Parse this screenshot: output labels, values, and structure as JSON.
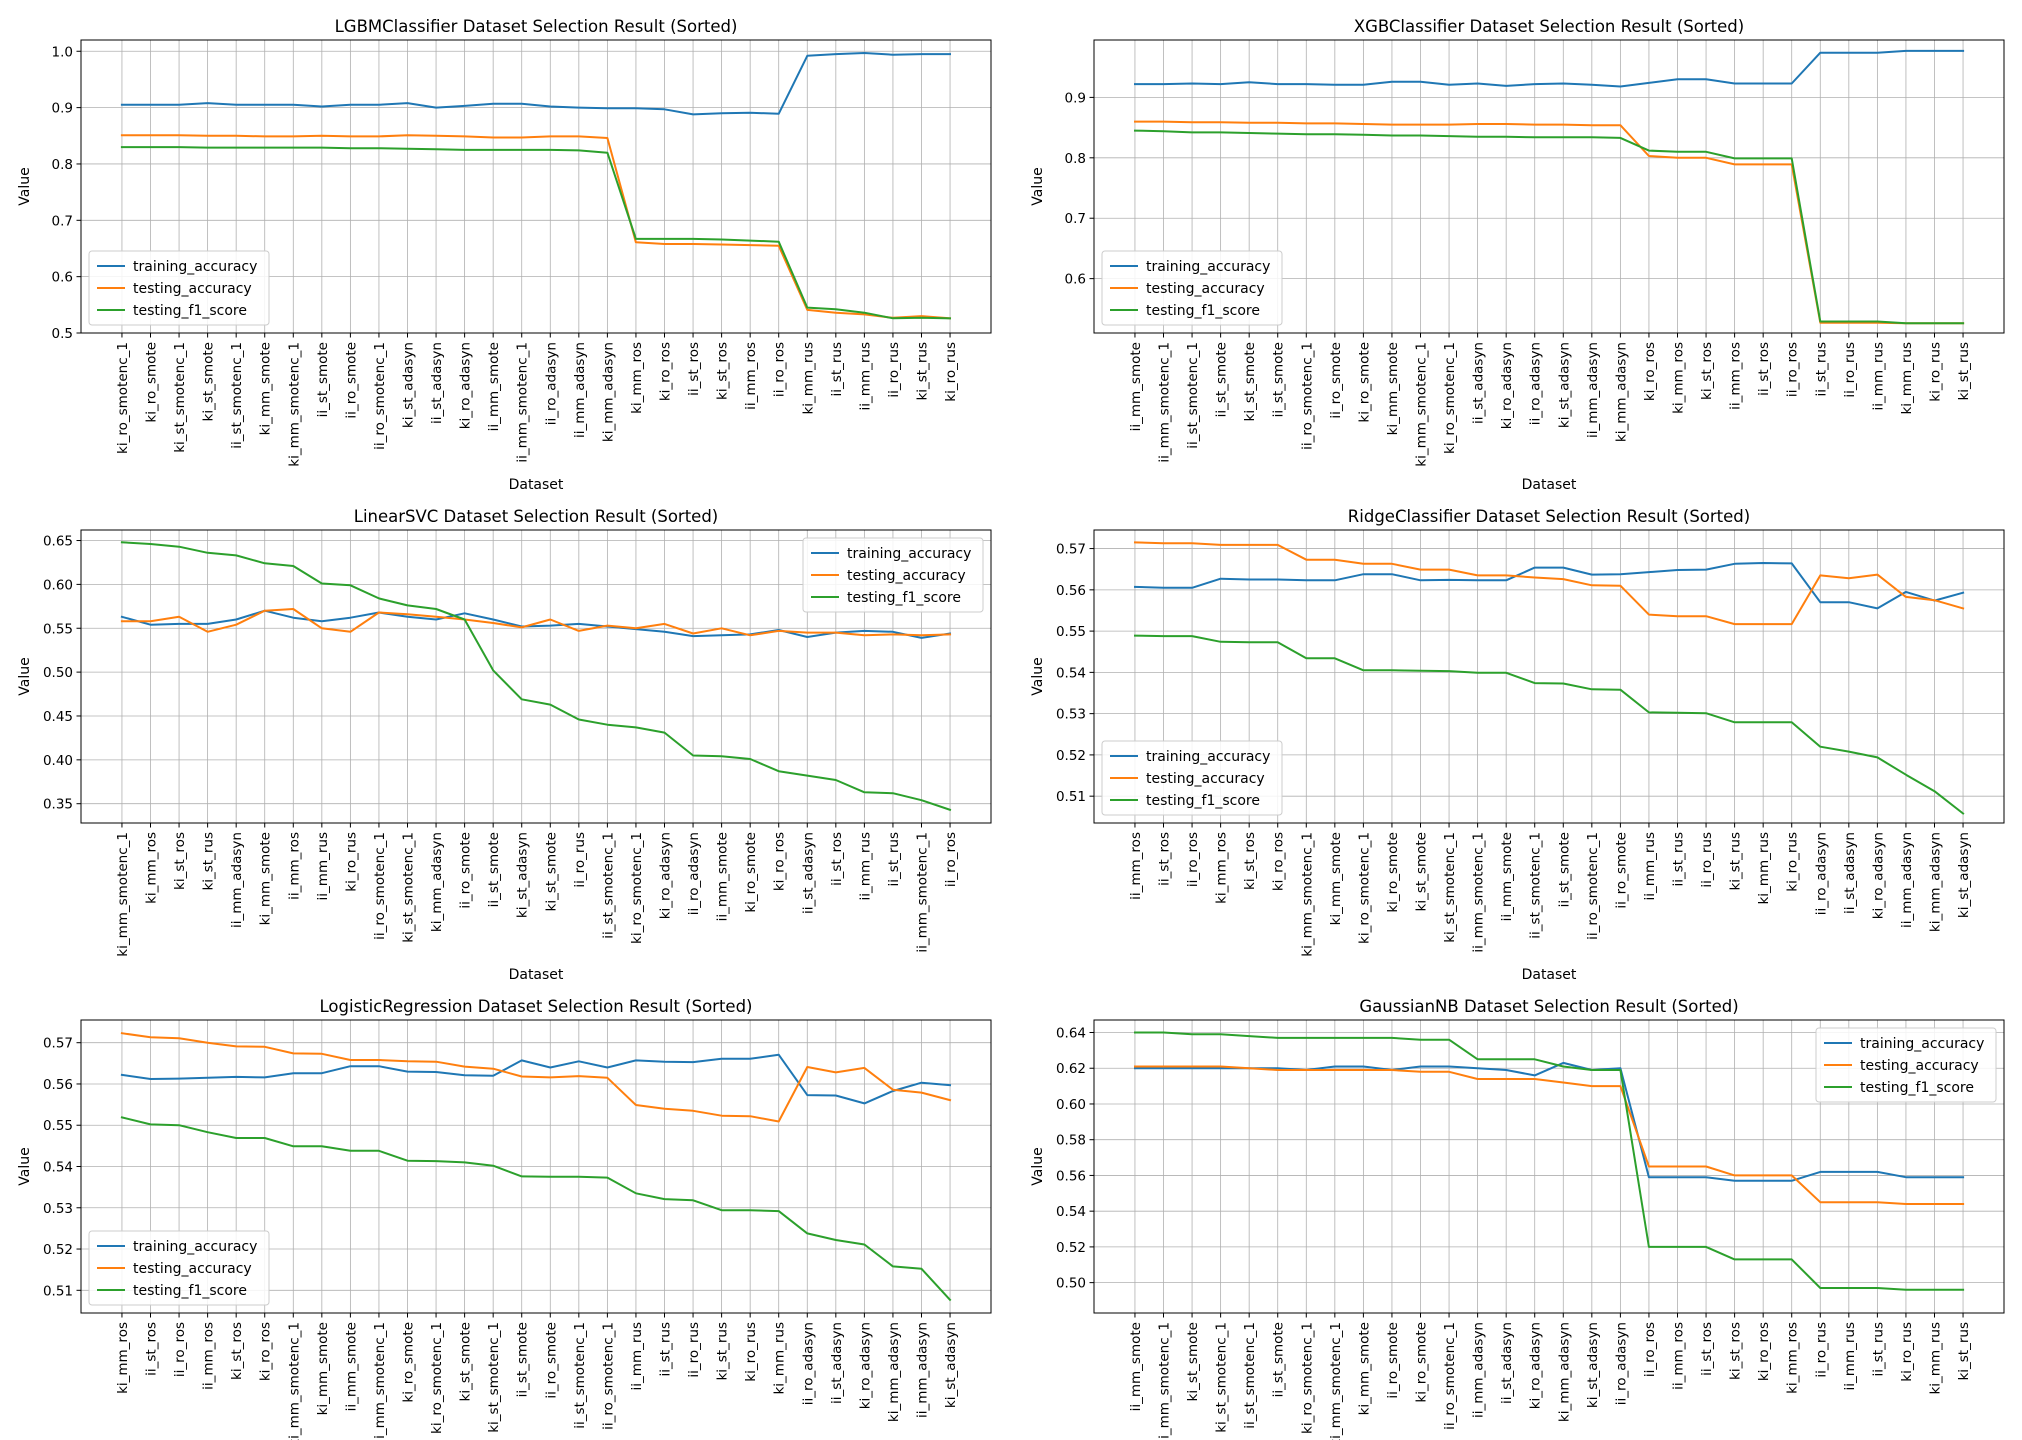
{
  "chart_data": [
    {
      "type": "line",
      "title": "LGBMClassifier Dataset Selection Result (Sorted)",
      "xlabel": "Dataset",
      "ylabel": "Value",
      "ylim": [
        0.5,
        1.02
      ],
      "yticks": [
        "0.5",
        "0.6",
        "0.7",
        "0.8",
        "0.9",
        "1.0"
      ],
      "legend_position": "lower-left",
      "grid": true,
      "categories": [
        "ki_ro_smotenc_1",
        "ki_ro_smote",
        "ki_st_smotenc_1",
        "ki_st_smote",
        "ii_st_smotenc_1",
        "ki_mm_smote",
        "ki_mm_smotenc_1",
        "ii_st_smote",
        "ii_ro_smote",
        "ii_ro_smotenc_1",
        "ki_st_adasyn",
        "ii_st_adasyn",
        "ki_ro_adasyn",
        "ii_mm_smote",
        "ii_mm_smotenc_1",
        "ii_ro_adasyn",
        "ii_mm_adasyn",
        "ki_mm_adasyn",
        "ki_mm_ros",
        "ki_ro_ros",
        "ii_st_ros",
        "ki_st_ros",
        "ii_mm_ros",
        "ii_ro_ros",
        "ki_mm_rus",
        "ii_st_rus",
        "ii_mm_rus",
        "ii_ro_rus",
        "ki_st_rus",
        "ki_ro_rus"
      ],
      "series": [
        {
          "name": "training_accuracy",
          "color": "#1f77b4",
          "values": [
            0.905,
            0.905,
            0.905,
            0.908,
            0.905,
            0.905,
            0.905,
            0.902,
            0.905,
            0.905,
            0.908,
            0.9,
            0.903,
            0.907,
            0.907,
            0.902,
            0.9,
            0.899,
            0.899,
            0.897,
            0.888,
            0.89,
            0.891,
            0.889,
            0.992,
            0.995,
            0.997,
            0.994,
            0.995,
            0.995
          ]
        },
        {
          "name": "testing_accuracy",
          "color": "#ff7f0e",
          "values": [
            0.851,
            0.851,
            0.851,
            0.85,
            0.85,
            0.849,
            0.849,
            0.85,
            0.849,
            0.849,
            0.851,
            0.85,
            0.849,
            0.847,
            0.847,
            0.849,
            0.849,
            0.846,
            0.661,
            0.658,
            0.658,
            0.657,
            0.656,
            0.655,
            0.541,
            0.536,
            0.533,
            0.527,
            0.53,
            0.526
          ]
        },
        {
          "name": "testing_f1_score",
          "color": "#2ca02c",
          "values": [
            0.83,
            0.83,
            0.83,
            0.829,
            0.829,
            0.829,
            0.829,
            0.829,
            0.828,
            0.828,
            0.827,
            0.826,
            0.825,
            0.825,
            0.825,
            0.825,
            0.824,
            0.82,
            0.667,
            0.667,
            0.667,
            0.666,
            0.664,
            0.662,
            0.545,
            0.542,
            0.536,
            0.526,
            0.527,
            0.526
          ]
        }
      ]
    },
    {
      "type": "line",
      "title": "XGBClassifier Dataset Selection Result (Sorted)",
      "xlabel": "Dataset",
      "ylabel": "Value",
      "ylim": [
        0.51,
        0.995
      ],
      "yticks": [
        "0.6",
        "0.7",
        "0.8",
        "0.9"
      ],
      "legend_position": "lower-left",
      "grid": true,
      "categories": [
        "ii_mm_smote",
        "ii_mm_smotenc_1",
        "ii_st_smotenc_1",
        "ii_st_smote",
        "ki_st_smote",
        "ii_st_smote",
        "ii_ro_smotenc_1",
        "ii_ro_smote",
        "ki_ro_smote",
        "ki_mm_smote",
        "ki_mm_smotenc_1",
        "ki_ro_smotenc_1",
        "ii_st_adasyn",
        "ki_ro_adasyn",
        "ii_ro_adasyn",
        "ki_st_adasyn",
        "ii_mm_adasyn",
        "ki_mm_adasyn",
        "ki_ro_ros",
        "ki_mm_ros",
        "ki_st_ros",
        "ii_mm_ros",
        "ii_st_ros",
        "ii_ro_ros",
        "ii_st_rus",
        "ii_ro_rus",
        "ii_mm_rus",
        "ki_mm_rus",
        "ki_ro_rus",
        "ki_st_rus"
      ],
      "series": [
        {
          "name": "training_accuracy",
          "color": "#1f77b4",
          "values": [
            0.922,
            0.922,
            0.923,
            0.922,
            0.925,
            0.922,
            0.922,
            0.921,
            0.921,
            0.926,
            0.926,
            0.921,
            0.923,
            0.919,
            0.922,
            0.923,
            0.921,
            0.918,
            0.924,
            0.93,
            0.93,
            0.923,
            0.923,
            0.923,
            0.974,
            0.974,
            0.974,
            0.977,
            0.977,
            0.977
          ]
        },
        {
          "name": "testing_accuracy",
          "color": "#ff7f0e",
          "values": [
            0.86,
            0.86,
            0.859,
            0.859,
            0.858,
            0.858,
            0.857,
            0.857,
            0.856,
            0.855,
            0.855,
            0.855,
            0.856,
            0.856,
            0.855,
            0.855,
            0.854,
            0.854,
            0.803,
            0.8,
            0.8,
            0.789,
            0.789,
            0.789,
            0.527,
            0.527,
            0.527,
            0.526,
            0.526,
            0.526
          ]
        },
        {
          "name": "testing_f1_score",
          "color": "#2ca02c",
          "values": [
            0.845,
            0.844,
            0.842,
            0.842,
            0.841,
            0.84,
            0.839,
            0.839,
            0.838,
            0.837,
            0.837,
            0.836,
            0.835,
            0.835,
            0.834,
            0.834,
            0.834,
            0.833,
            0.812,
            0.81,
            0.81,
            0.799,
            0.799,
            0.799,
            0.529,
            0.529,
            0.529,
            0.526,
            0.526,
            0.526
          ]
        }
      ]
    },
    {
      "type": "line",
      "title": "LinearSVC Dataset Selection Result (Sorted)",
      "xlabel": "Dataset",
      "ylabel": "Value",
      "ylim": [
        0.328,
        0.662
      ],
      "yticks": [
        "0.35",
        "0.40",
        "0.45",
        "0.50",
        "0.55",
        "0.60",
        "0.65"
      ],
      "legend_position": "upper-right",
      "grid": true,
      "categories": [
        "ki_mm_smotenc_1",
        "ki_mm_ros",
        "ki_st_ros",
        "ki_st_rus",
        "ii_mm_adasyn",
        "ki_mm_smote",
        "ii_mm_ros",
        "ii_mm_rus",
        "ki_ro_rus",
        "ii_ro_smotenc_1",
        "ki_st_smotenc_1",
        "ki_mm_adasyn",
        "ii_ro_smote",
        "ii_st_smote",
        "ki_st_adasyn",
        "ki_st_smote",
        "ii_ro_rus",
        "ii_st_smotenc_1",
        "ki_ro_smotenc_1",
        "ki_ro_adasyn",
        "ii_ro_adasyn",
        "ii_mm_smote",
        "ki_ro_smote",
        "ki_ro_ros",
        "ii_st_adasyn",
        "ii_st_ros",
        "ii_mm_rus",
        "ii_st_rus",
        "ii_mm_smotenc_1",
        "ii_ro_ros"
      ],
      "series": [
        {
          "name": "training_accuracy",
          "color": "#1f77b4",
          "values": [
            0.563,
            0.554,
            0.555,
            0.555,
            0.56,
            0.57,
            0.562,
            0.558,
            0.562,
            0.568,
            0.563,
            0.56,
            0.567,
            0.56,
            0.552,
            0.553,
            0.555,
            0.552,
            0.549,
            0.546,
            0.541,
            0.542,
            0.543,
            0.548,
            0.54,
            0.545,
            0.547,
            0.546,
            0.539,
            0.544
          ]
        },
        {
          "name": "testing_accuracy",
          "color": "#ff7f0e",
          "values": [
            0.558,
            0.558,
            0.563,
            0.546,
            0.554,
            0.57,
            0.572,
            0.55,
            0.546,
            0.568,
            0.566,
            0.563,
            0.56,
            0.556,
            0.551,
            0.56,
            0.547,
            0.553,
            0.55,
            0.555,
            0.544,
            0.55,
            0.542,
            0.547,
            0.545,
            0.545,
            0.542,
            0.543,
            0.542,
            0.543
          ]
        },
        {
          "name": "testing_f1_score",
          "color": "#2ca02c",
          "values": [
            0.648,
            0.646,
            0.643,
            0.636,
            0.633,
            0.624,
            0.621,
            0.601,
            0.599,
            0.584,
            0.576,
            0.572,
            0.56,
            0.502,
            0.469,
            0.463,
            0.446,
            0.44,
            0.437,
            0.431,
            0.405,
            0.404,
            0.401,
            0.387,
            0.382,
            0.377,
            0.363,
            0.362,
            0.354,
            0.343
          ]
        }
      ]
    },
    {
      "type": "line",
      "title": "RidgeClassifier Dataset Selection Result (Sorted)",
      "xlabel": "Dataset",
      "ylabel": "Value",
      "ylim": [
        0.5035,
        0.5745
      ],
      "yticks": [
        "0.51",
        "0.52",
        "0.53",
        "0.54",
        "0.55",
        "0.56",
        "0.57"
      ],
      "legend_position": "lower-left",
      "grid": true,
      "categories": [
        "ii_mm_ros",
        "ii_st_ros",
        "ii_ro_ros",
        "ki_mm_ros",
        "ki_st_ros",
        "ki_ro_ros",
        "ki_mm_smotenc_1",
        "ki_mm_smote",
        "ki_ro_smotenc_1",
        "ki_ro_smote",
        "ki_st_smote",
        "ki_st_smotenc_1",
        "ii_mm_smotenc_1",
        "ii_mm_smote",
        "ii_st_smotenc_1",
        "ii_st_smote",
        "ii_ro_smotenc_1",
        "ii_ro_smote",
        "ii_mm_rus",
        "ii_st_rus",
        "ii_ro_rus",
        "ki_st_rus",
        "ki_mm_rus",
        "ki_ro_rus",
        "ii_ro_adasyn",
        "ii_st_adasyn",
        "ki_ro_adasyn",
        "ii_mm_adasyn",
        "ki_mm_adasyn",
        "ki_st_adasyn"
      ],
      "series": [
        {
          "name": "training_accuracy",
          "color": "#1f77b4",
          "values": [
            0.5607,
            0.5605,
            0.5605,
            0.5627,
            0.5625,
            0.5625,
            0.5623,
            0.5623,
            0.5638,
            0.5638,
            0.5623,
            0.5624,
            0.5623,
            0.5623,
            0.5654,
            0.5654,
            0.5637,
            0.5638,
            0.5643,
            0.5648,
            0.5649,
            0.5663,
            0.5665,
            0.5664,
            0.557,
            0.557,
            0.5555,
            0.5595,
            0.5574,
            0.5593
          ]
        },
        {
          "name": "testing_accuracy",
          "color": "#ff7f0e",
          "values": [
            0.5715,
            0.5713,
            0.5713,
            0.5709,
            0.5709,
            0.5709,
            0.5673,
            0.5673,
            0.5663,
            0.5663,
            0.5649,
            0.5649,
            0.5635,
            0.5635,
            0.563,
            0.5626,
            0.5611,
            0.561,
            0.554,
            0.5536,
            0.5536,
            0.5517,
            0.5517,
            0.5517,
            0.5635,
            0.5628,
            0.5637,
            0.5583,
            0.5575,
            0.5555
          ]
        },
        {
          "name": "testing_f1_score",
          "color": "#2ca02c",
          "values": [
            0.5489,
            0.5488,
            0.5488,
            0.5474,
            0.5473,
            0.5473,
            0.5434,
            0.5434,
            0.5405,
            0.5405,
            0.5404,
            0.5403,
            0.5399,
            0.5399,
            0.5374,
            0.5373,
            0.5359,
            0.5358,
            0.5303,
            0.5302,
            0.5301,
            0.5279,
            0.5279,
            0.5279,
            0.522,
            0.5208,
            0.5194,
            0.5152,
            0.5112,
            0.5058
          ]
        }
      ]
    },
    {
      "type": "line",
      "title": "LogisticRegression Dataset Selection Result (Sorted)",
      "xlabel": "Dataset",
      "ylabel": "Value",
      "ylim": [
        0.5045,
        0.5755
      ],
      "yticks": [
        "0.51",
        "0.52",
        "0.53",
        "0.54",
        "0.55",
        "0.56",
        "0.57"
      ],
      "legend_position": "lower-left",
      "grid": true,
      "categories": [
        "ki_mm_ros",
        "ii_st_ros",
        "ii_ro_ros",
        "ii_mm_ros",
        "ki_st_ros",
        "ki_ro_ros",
        "ki_mm_smotenc_1",
        "ki_mm_smote",
        "ii_mm_smote",
        "ii_mm_smotenc_1",
        "ki_ro_smote",
        "ki_ro_smotenc_1",
        "ki_st_smote",
        "ki_st_smotenc_1",
        "ii_st_smote",
        "ii_ro_smote",
        "ii_st_smotenc_1",
        "ii_ro_smotenc_1",
        "ii_mm_rus",
        "ii_st_rus",
        "ii_ro_rus",
        "ki_st_rus",
        "ki_ro_rus",
        "ki_mm_rus",
        "ii_ro_adasyn",
        "ii_st_adasyn",
        "ki_ro_adasyn",
        "ki_mm_adasyn",
        "ii_mm_adasyn",
        "ki_st_adasyn"
      ],
      "series": [
        {
          "name": "training_accuracy",
          "color": "#1f77b4",
          "values": [
            0.5622,
            0.5612,
            0.5613,
            0.5615,
            0.5617,
            0.5616,
            0.5626,
            0.5626,
            0.5643,
            0.5643,
            0.563,
            0.5629,
            0.5621,
            0.562,
            0.5657,
            0.564,
            0.5655,
            0.564,
            0.5657,
            0.5654,
            0.5653,
            0.5661,
            0.5661,
            0.5671,
            0.5573,
            0.5572,
            0.5553,
            0.5583,
            0.5603,
            0.5597
          ]
        },
        {
          "name": "testing_accuracy",
          "color": "#ff7f0e",
          "values": [
            0.5723,
            0.5713,
            0.5711,
            0.57,
            0.5691,
            0.569,
            0.5674,
            0.5673,
            0.5658,
            0.5658,
            0.5655,
            0.5654,
            0.5642,
            0.5637,
            0.5618,
            0.5616,
            0.5619,
            0.5615,
            0.5549,
            0.554,
            0.5535,
            0.5523,
            0.5522,
            0.5509,
            0.5641,
            0.5628,
            0.5639,
            0.5586,
            0.5579,
            0.5561
          ]
        },
        {
          "name": "testing_f1_score",
          "color": "#2ca02c",
          "values": [
            0.5519,
            0.5502,
            0.55,
            0.5483,
            0.5469,
            0.5469,
            0.5449,
            0.5449,
            0.5438,
            0.5438,
            0.5414,
            0.5413,
            0.541,
            0.5402,
            0.5376,
            0.5375,
            0.5375,
            0.5373,
            0.5335,
            0.5321,
            0.5318,
            0.5294,
            0.5294,
            0.5292,
            0.5238,
            0.5222,
            0.5211,
            0.5158,
            0.5152,
            0.5077
          ]
        }
      ]
    },
    {
      "type": "line",
      "title": "GaussianNB Dataset Selection Result (Sorted)",
      "xlabel": "Dataset",
      "ylabel": "Value",
      "ylim": [
        0.483,
        0.647
      ],
      "yticks": [
        "0.50",
        "0.52",
        "0.54",
        "0.56",
        "0.58",
        "0.60",
        "0.62",
        "0.64"
      ],
      "legend_position": "upper-right",
      "grid": true,
      "categories": [
        "ii_mm_smote",
        "ii_mm_smotenc_1",
        "ki_st_smote",
        "ki_st_smotenc_1",
        "ii_st_smotenc_1",
        "ii_st_smote",
        "ki_ro_smotenc_1",
        "ki_mm_smotenc_1",
        "ki_mm_smote",
        "ii_ro_smote",
        "ki_ro_smote",
        "ii_ro_smotenc_1",
        "ii_mm_adasyn",
        "ii_st_adasyn",
        "ki_ro_adasyn",
        "ki_mm_adasyn",
        "ki_st_adasyn",
        "ii_ro_adasyn",
        "ii_ro_ros",
        "ii_mm_ros",
        "ii_st_ros",
        "ki_st_ros",
        "ki_ro_ros",
        "ki_mm_ros",
        "ii_ro_rus",
        "ii_mm_rus",
        "ii_st_rus",
        "ki_ro_rus",
        "ki_mm_rus",
        "ki_st_rus"
      ],
      "series": [
        {
          "name": "training_accuracy",
          "color": "#1f77b4",
          "values": [
            0.62,
            0.62,
            0.62,
            0.62,
            0.62,
            0.62,
            0.619,
            0.621,
            0.621,
            0.619,
            0.621,
            0.621,
            0.62,
            0.619,
            0.616,
            0.623,
            0.619,
            0.62,
            0.559,
            0.559,
            0.559,
            0.557,
            0.557,
            0.557,
            0.562,
            0.562,
            0.562,
            0.559,
            0.559,
            0.559
          ]
        },
        {
          "name": "testing_accuracy",
          "color": "#ff7f0e",
          "values": [
            0.621,
            0.621,
            0.621,
            0.621,
            0.62,
            0.619,
            0.619,
            0.619,
            0.619,
            0.619,
            0.618,
            0.618,
            0.614,
            0.614,
            0.614,
            0.612,
            0.61,
            0.61,
            0.565,
            0.565,
            0.565,
            0.56,
            0.56,
            0.56,
            0.545,
            0.545,
            0.545,
            0.544,
            0.544,
            0.544
          ]
        },
        {
          "name": "testing_f1_score",
          "color": "#2ca02c",
          "values": [
            0.64,
            0.64,
            0.639,
            0.639,
            0.638,
            0.637,
            0.637,
            0.637,
            0.637,
            0.637,
            0.636,
            0.636,
            0.625,
            0.625,
            0.625,
            0.621,
            0.619,
            0.619,
            0.52,
            0.52,
            0.52,
            0.513,
            0.513,
            0.513,
            0.497,
            0.497,
            0.497,
            0.496,
            0.496,
            0.496
          ]
        }
      ]
    }
  ]
}
